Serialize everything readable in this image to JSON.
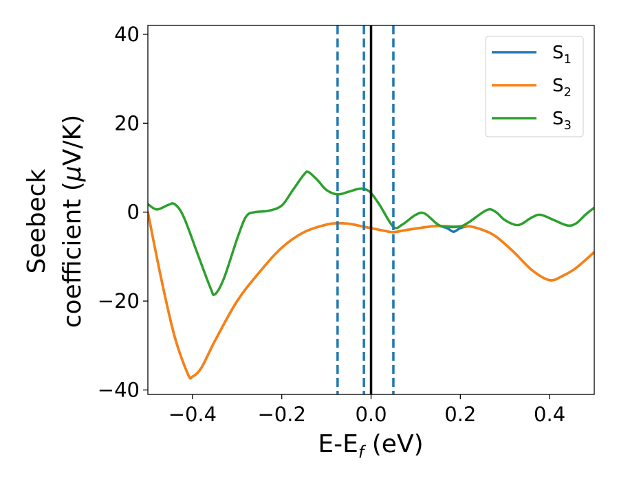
{
  "chart_data": {
    "type": "line",
    "xlabel": {
      "main": "E-E",
      "sub": "f",
      "unit": " (eV)"
    },
    "ylabel": {
      "line1": "Seebeck",
      "line2": "coefficient  (",
      "mu": "μ",
      "unit": "V/K)"
    },
    "xlim": [
      -0.5,
      0.5
    ],
    "ylim": [
      -41,
      42
    ],
    "xticks": [
      -0.4,
      -0.2,
      0.0,
      0.2,
      0.4
    ],
    "xtick_labels": [
      "−0.4",
      "−0.2",
      "0.0",
      "0.2",
      "0.4"
    ],
    "yticks": [
      -40,
      -20,
      0,
      20,
      40
    ],
    "ytick_labels": [
      "−40",
      "−20",
      "0",
      "20",
      "40"
    ],
    "grid": false,
    "legend_position": "top-right",
    "vertical_lines": [
      {
        "x": -0.075,
        "style": "dashed",
        "color": "#1f77b4"
      },
      {
        "x": -0.016,
        "style": "dashed",
        "color": "#1f77b4"
      },
      {
        "x": 0.0,
        "style": "solid",
        "color": "#000000"
      },
      {
        "x": 0.05,
        "style": "dashed",
        "color": "#1f77b4"
      }
    ],
    "series": [
      {
        "name": "S",
        "sub": "1",
        "color": "#1f77b4",
        "points": [
          [
            -0.5,
            0
          ],
          [
            -0.47,
            -15
          ],
          [
            -0.44,
            -28
          ],
          [
            -0.41,
            -36.5
          ],
          [
            -0.4,
            -37
          ],
          [
            -0.38,
            -35
          ],
          [
            -0.35,
            -29
          ],
          [
            -0.3,
            -20
          ],
          [
            -0.25,
            -13.5
          ],
          [
            -0.2,
            -8
          ],
          [
            -0.15,
            -4.5
          ],
          [
            -0.1,
            -2.8
          ],
          [
            -0.075,
            -2.5
          ],
          [
            -0.05,
            -2.6
          ],
          [
            -0.02,
            -3.2
          ],
          [
            0,
            -3.6
          ],
          [
            0.03,
            -4.2
          ],
          [
            0.05,
            -4.5
          ],
          [
            0.08,
            -4
          ],
          [
            0.12,
            -3.4
          ],
          [
            0.15,
            -3.1
          ],
          [
            0.17,
            -3.6
          ],
          [
            0.185,
            -4.4
          ],
          [
            0.2,
            -3.6
          ],
          [
            0.22,
            -3.2
          ],
          [
            0.25,
            -4
          ],
          [
            0.28,
            -5.5
          ],
          [
            0.32,
            -9
          ],
          [
            0.36,
            -13
          ],
          [
            0.4,
            -15.3
          ],
          [
            0.43,
            -14.3
          ],
          [
            0.46,
            -12.5
          ],
          [
            0.5,
            -9
          ]
        ]
      },
      {
        "name": "S",
        "sub": "2",
        "color": "#ff7f0e",
        "points": [
          [
            -0.5,
            0
          ],
          [
            -0.47,
            -15
          ],
          [
            -0.44,
            -28
          ],
          [
            -0.41,
            -36.5
          ],
          [
            -0.4,
            -37
          ],
          [
            -0.38,
            -35
          ],
          [
            -0.35,
            -29
          ],
          [
            -0.3,
            -20
          ],
          [
            -0.25,
            -13.5
          ],
          [
            -0.2,
            -8
          ],
          [
            -0.15,
            -4.5
          ],
          [
            -0.1,
            -2.8
          ],
          [
            -0.075,
            -2.5
          ],
          [
            -0.05,
            -2.6
          ],
          [
            -0.02,
            -3.2
          ],
          [
            0,
            -3.6
          ],
          [
            0.03,
            -4.2
          ],
          [
            0.05,
            -4.5
          ],
          [
            0.08,
            -4
          ],
          [
            0.12,
            -3.4
          ],
          [
            0.15,
            -3.1
          ],
          [
            0.185,
            -3.2
          ],
          [
            0.22,
            -3.2
          ],
          [
            0.25,
            -4
          ],
          [
            0.28,
            -5.5
          ],
          [
            0.32,
            -9
          ],
          [
            0.36,
            -13
          ],
          [
            0.4,
            -15.3
          ],
          [
            0.43,
            -14.3
          ],
          [
            0.46,
            -12.5
          ],
          [
            0.5,
            -9
          ]
        ]
      },
      {
        "name": "S",
        "sub": "3",
        "color": "#2ca02c",
        "points": [
          [
            -0.5,
            1.8
          ],
          [
            -0.48,
            0.6
          ],
          [
            -0.455,
            1.6
          ],
          [
            -0.44,
            1.8
          ],
          [
            -0.42,
            -1
          ],
          [
            -0.39,
            -9
          ],
          [
            -0.36,
            -17
          ],
          [
            -0.35,
            -18.5
          ],
          [
            -0.33,
            -15
          ],
          [
            -0.3,
            -6
          ],
          [
            -0.28,
            -1
          ],
          [
            -0.26,
            0
          ],
          [
            -0.23,
            0.3
          ],
          [
            -0.2,
            1.5
          ],
          [
            -0.175,
            5
          ],
          [
            -0.15,
            8.5
          ],
          [
            -0.14,
            9
          ],
          [
            -0.12,
            7.2
          ],
          [
            -0.1,
            5
          ],
          [
            -0.075,
            4
          ],
          [
            -0.05,
            4.6
          ],
          [
            -0.03,
            5.2
          ],
          [
            -0.015,
            5.2
          ],
          [
            0,
            4.3
          ],
          [
            0.02,
            1.5
          ],
          [
            0.05,
            -3.3
          ],
          [
            0.07,
            -2.8
          ],
          [
            0.1,
            -0.6
          ],
          [
            0.12,
            -0.3
          ],
          [
            0.15,
            -2.8
          ],
          [
            0.17,
            -3.3
          ],
          [
            0.2,
            -3.2
          ],
          [
            0.22,
            -2.2
          ],
          [
            0.26,
            0.5
          ],
          [
            0.28,
            0
          ],
          [
            0.3,
            -1.8
          ],
          [
            0.33,
            -2.9
          ],
          [
            0.36,
            -1.2
          ],
          [
            0.38,
            -0.6
          ],
          [
            0.41,
            -1.8
          ],
          [
            0.44,
            -3
          ],
          [
            0.46,
            -2.5
          ],
          [
            0.48,
            -0.6
          ],
          [
            0.5,
            1
          ]
        ]
      }
    ]
  }
}
